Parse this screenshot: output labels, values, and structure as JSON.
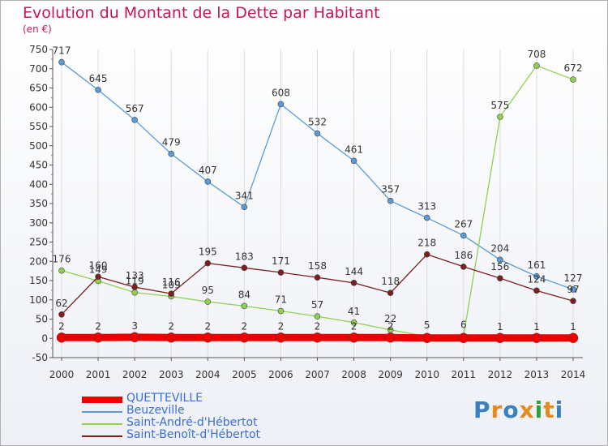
{
  "title": "Evolution du Montant de la Dette par Habitant",
  "unit": "(en €)",
  "logo": "Proxiti",
  "colors": {
    "title": "#c2185b",
    "axis": "#555555",
    "grid": "#dcdcdc",
    "label": "#333333",
    "logo_letters": [
      "#3a7fc0",
      "#e58a1f",
      "#3a7fc0",
      "#e58a1f",
      "#2e9e3a",
      "#e58a1f",
      "#3a7fc0"
    ]
  },
  "chart_data": {
    "type": "line",
    "title": "Evolution du Montant de la Dette par Habitant",
    "ylabel": "(en €)",
    "x": [
      "2000",
      "2001",
      "2002",
      "2003",
      "2004",
      "2005",
      "2006",
      "2007",
      "2008",
      "2009",
      "2010",
      "2011",
      "2012",
      "2013",
      "2014"
    ],
    "ylim": [
      -50,
      750
    ],
    "yticks": [
      -50,
      0,
      50,
      100,
      150,
      200,
      250,
      300,
      350,
      400,
      450,
      500,
      550,
      600,
      650,
      700,
      750
    ],
    "grid": "vertical",
    "legend": "bottom-left",
    "series": [
      {
        "name": "QUETTEVILLE",
        "color": "#ee0000",
        "values": [
          2,
          2,
          3,
          2,
          2,
          2,
          2,
          2,
          2,
          2,
          1,
          1,
          1,
          1,
          1
        ],
        "labels": [
          "2",
          "2",
          "3",
          "2",
          "2",
          "2",
          "2",
          "2",
          "2",
          "2",
          "",
          "",
          "1",
          "1",
          "1"
        ]
      },
      {
        "name": "Beuzeville",
        "color": "#5b9bd5",
        "values": [
          717,
          645,
          567,
          479,
          407,
          341,
          608,
          532,
          461,
          357,
          313,
          267,
          204,
          161,
          127
        ],
        "labels": [
          "717",
          "645",
          "567",
          "479",
          "407",
          "341",
          "608",
          "532",
          "461",
          "357",
          "313",
          "267",
          "204",
          "161",
          "127"
        ]
      },
      {
        "name": "Saint-André-d'Hébertot",
        "color": "#8fd14f",
        "values": [
          176,
          149,
          119,
          109,
          95,
          84,
          71,
          57,
          41,
          22,
          5,
          6,
          575,
          708,
          672
        ],
        "labels": [
          "176",
          "149",
          "119",
          "109",
          "95",
          "84",
          "71",
          "57",
          "41",
          "22",
          "5",
          "6",
          "575",
          "708",
          "672"
        ]
      },
      {
        "name": "Saint-Benoît-d'Hébertot",
        "color": "#7b1f1f",
        "values": [
          62,
          160,
          133,
          116,
          195,
          183,
          171,
          158,
          144,
          118,
          218,
          186,
          156,
          124,
          97
        ],
        "labels": [
          "62",
          "160",
          "133",
          "116",
          "195",
          "183",
          "171",
          "158",
          "144",
          "118",
          "218",
          "186",
          "156",
          "124",
          "97"
        ]
      }
    ]
  }
}
